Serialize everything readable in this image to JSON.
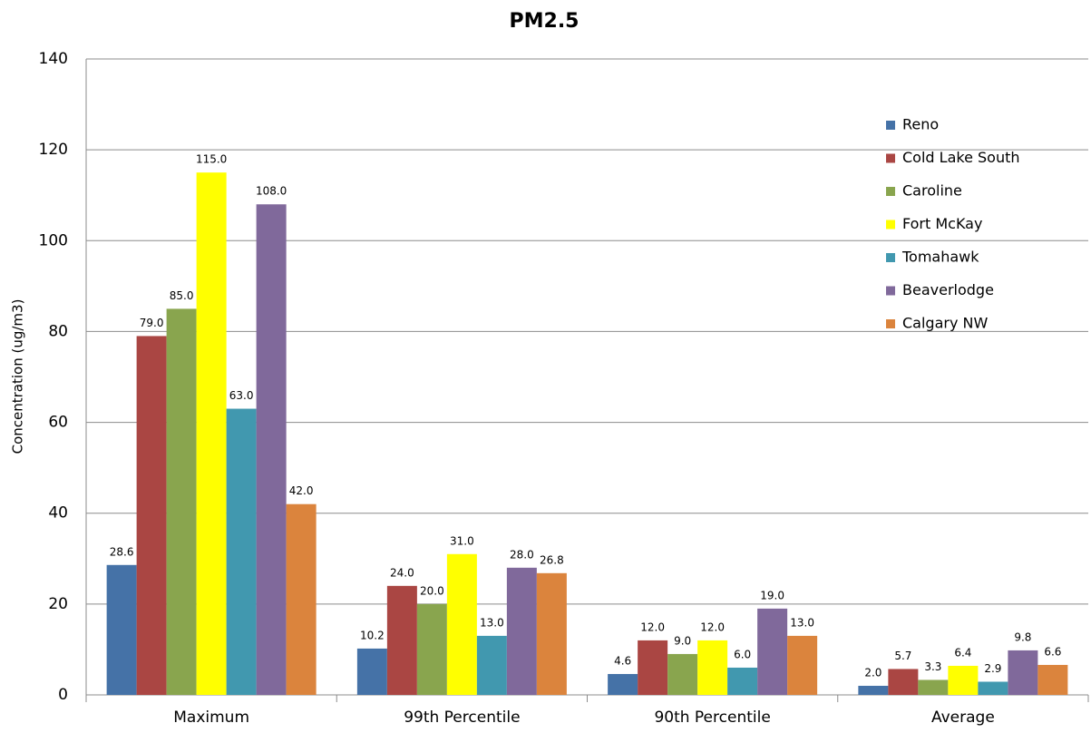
{
  "chart_data": {
    "type": "bar",
    "title": "PM2.5",
    "y_label": "Concentration (ug/m3)",
    "categories": [
      "Maximum",
      "99th Percentile",
      "90th Percentile",
      "Average"
    ],
    "series": [
      {
        "name": "Reno",
        "color": "#4572a7",
        "values": [
          28.6,
          10.2,
          4.6,
          2.0
        ],
        "value_labels": [
          "28.6",
          "10.2",
          "4.6",
          "2.0"
        ]
      },
      {
        "name": "Cold Lake South",
        "color": "#aa4643",
        "values": [
          79,
          24,
          12,
          5.7
        ],
        "value_labels": [
          "79.0",
          "24.0",
          "12.0",
          "5.7"
        ]
      },
      {
        "name": "Caroline",
        "color": "#89a54e",
        "values": [
          85,
          20,
          9,
          3.3
        ],
        "value_labels": [
          "85.0",
          "20.0",
          "9.0",
          "3.3"
        ]
      },
      {
        "name": "Fort McKay",
        "color": "#ffff00",
        "values": [
          115,
          31,
          12,
          6.4
        ],
        "value_labels": [
          "115.0",
          "31.0",
          "12.0",
          "6.4"
        ]
      },
      {
        "name": "Tomahawk",
        "color": "#4198af",
        "values": [
          63,
          13,
          6,
          2.9
        ],
        "value_labels": [
          "63.0",
          "13.0",
          "6.0",
          "2.9"
        ]
      },
      {
        "name": "Beaverlodge",
        "color": "#80699b",
        "values": [
          108,
          28,
          19,
          9.8
        ],
        "value_labels": [
          "108.0",
          "28.0",
          "19.0",
          "9.8"
        ]
      },
      {
        "name": "Calgary NW",
        "color": "#db843d",
        "values": [
          42,
          26.8,
          13,
          6.6
        ],
        "value_labels": [
          "42.0",
          "26.8",
          "13.0",
          "6.6"
        ]
      }
    ],
    "ylim": [
      0,
      140
    ],
    "yticks": [
      0,
      20,
      40,
      60,
      80,
      100,
      120,
      140
    ],
    "grid": true,
    "legend": "top-right"
  }
}
